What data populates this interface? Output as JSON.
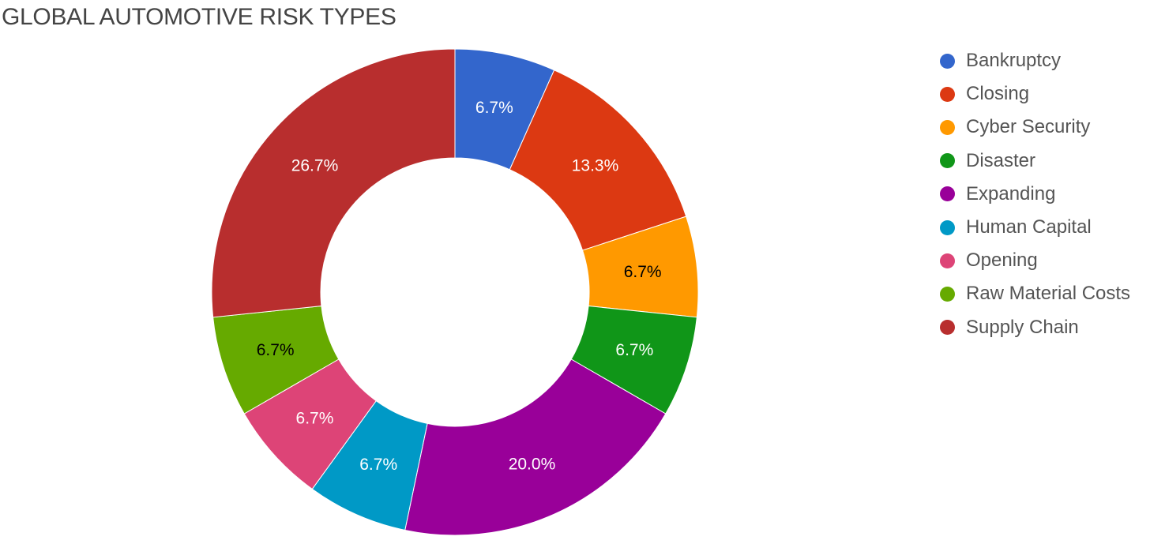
{
  "chart_data": {
    "type": "pie",
    "title": "GLOBAL AUTOMOTIVE RISK TYPES",
    "donut": true,
    "legend_position": "right",
    "categories": [
      "Bankruptcy",
      "Closing",
      "Cyber Security",
      "Disaster",
      "Expanding",
      "Human Capital",
      "Opening",
      "Raw Material Costs",
      "Supply Chain"
    ],
    "values": [
      6.7,
      13.3,
      6.7,
      6.7,
      20.0,
      6.7,
      6.7,
      6.7,
      26.7
    ],
    "data_labels": [
      "6.7%",
      "13.3%",
      "6.7%",
      "6.7%",
      "20.0%",
      "6.7%",
      "6.7%",
      "6.7%",
      "26.7%"
    ],
    "colors": [
      "#3366CC",
      "#DC3912",
      "#FF9900",
      "#109618",
      "#990099",
      "#0099C6",
      "#DD4477",
      "#66AA00",
      "#B82E2E"
    ],
    "label_colors": [
      "#FFFFFF",
      "#FFFFFF",
      "#000000",
      "#FFFFFF",
      "#FFFFFF",
      "#FFFFFF",
      "#FFFFFF",
      "#000000",
      "#FFFFFF"
    ]
  }
}
